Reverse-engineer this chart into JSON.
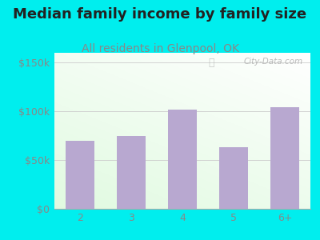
{
  "title": "Median family income by family size",
  "subtitle": "All residents in Glenpool, OK",
  "categories": [
    "2",
    "3",
    "4",
    "5",
    "6+"
  ],
  "values": [
    70000,
    75000,
    102000,
    63000,
    104000
  ],
  "bar_color": "#b8a8d0",
  "ylim": [
    0,
    160000
  ],
  "yticks": [
    0,
    50000,
    100000,
    150000
  ],
  "ytick_labels": [
    "$0",
    "$50k",
    "$100k",
    "$150k"
  ],
  "title_fontsize": 13,
  "subtitle_fontsize": 10,
  "title_color": "#222222",
  "subtitle_color": "#888888",
  "background_color": "#00EEEE",
  "watermark": "City-Data.com",
  "tick_color": "#888888",
  "tick_fontsize": 9
}
